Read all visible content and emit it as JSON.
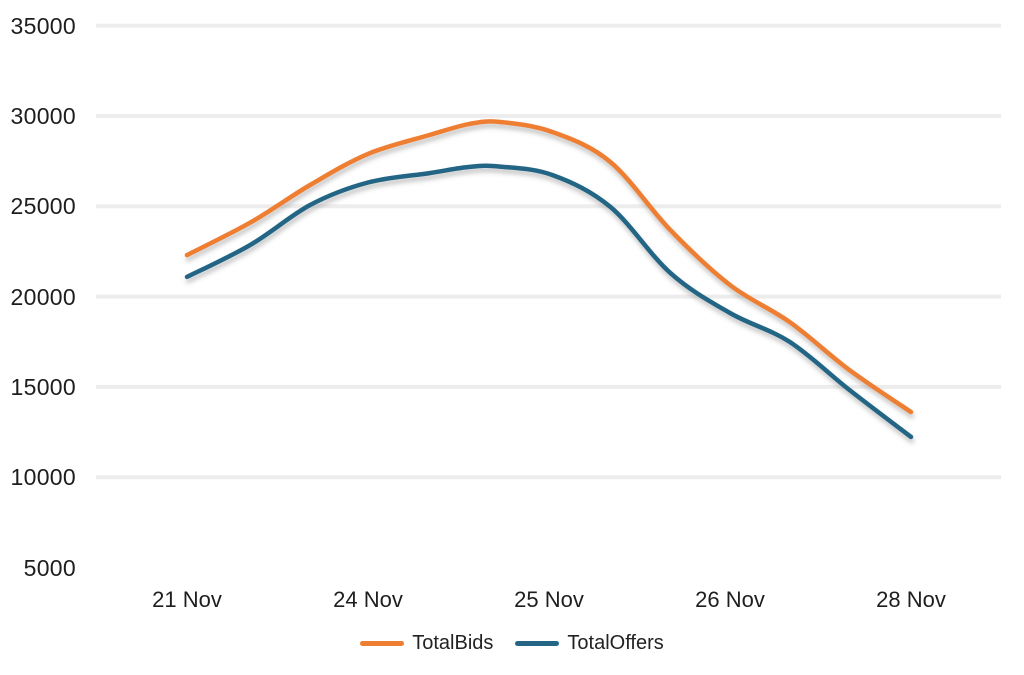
{
  "chart_data": {
    "type": "line",
    "title": "",
    "xlabel": "",
    "ylabel": "",
    "categories": [
      "21 Nov",
      "24 Nov",
      "25 Nov",
      "26 Nov",
      "28 Nov"
    ],
    "y_ticks": [
      35000,
      30000,
      25000,
      20000,
      15000,
      10000,
      5000
    ],
    "y_gridlines": [
      35000,
      30000,
      25000,
      20000,
      15000,
      10000
    ],
    "ylim": [
      5000,
      35000
    ],
    "grid": "horizontal",
    "legend_position": "bottom-center",
    "line_smoothing": true,
    "colors": {
      "grid": "#EDEDED",
      "axis_text": "#1E1E1E",
      "background": "#FFFFFF"
    },
    "series": [
      {
        "name": "TotalBids",
        "color": "#EE7E32",
        "values_at_categories": [
          22300,
          27900,
          29100,
          20650,
          13600
        ],
        "peak_value": 29700,
        "sampled_points": {
          "x": [
            0,
            0.35,
            0.68,
            1,
            1.34,
            1.56,
            1.73,
            2.02,
            2.34,
            2.67,
            3,
            3.33,
            3.66,
            4
          ],
          "y": [
            22300,
            24100,
            26180,
            27900,
            28950,
            29560,
            29670,
            29110,
            27450,
            23690,
            20640,
            18590,
            15930,
            13610
          ]
        }
      },
      {
        "name": "TotalOffers",
        "color": "#246585",
        "values_at_categories": [
          21100,
          26300,
          26750,
          19100,
          12250
        ],
        "peak_value": 27200,
        "sampled_points": {
          "x": [
            0,
            0.35,
            0.68,
            1,
            1.34,
            1.56,
            1.73,
            2.02,
            2.34,
            2.67,
            3,
            3.33,
            3.66,
            4
          ],
          "y": [
            21090,
            22860,
            25070,
            26320,
            26840,
            27180,
            27200,
            26730,
            24960,
            21310,
            19090,
            17490,
            14830,
            12230
          ]
        }
      }
    ]
  }
}
